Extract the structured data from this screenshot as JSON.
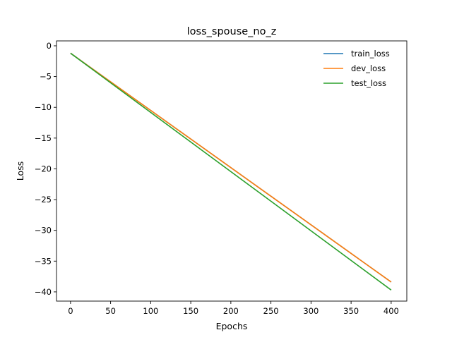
{
  "chart_data": {
    "type": "line",
    "title": "loss_spouse_no_z",
    "xlabel": "Epochs",
    "ylabel": "Loss",
    "xlim": [
      -17.5,
      419.5
    ],
    "ylim": [
      -41.5,
      0.8
    ],
    "xticks": [
      0,
      50,
      100,
      150,
      200,
      250,
      300,
      350,
      400
    ],
    "yticks": [
      0,
      -5,
      -10,
      -15,
      -20,
      -25,
      -30,
      -35,
      -40
    ],
    "legend_position": "upper-right",
    "grid": false,
    "series": [
      {
        "name": "train_loss",
        "color": "#1f77b4",
        "x": [
          0,
          400
        ],
        "y": [
          -1.2,
          -38.4
        ]
      },
      {
        "name": "dev_loss",
        "color": "#ff7f0e",
        "x": [
          0,
          400
        ],
        "y": [
          -1.2,
          -38.4
        ]
      },
      {
        "name": "test_loss",
        "color": "#2ca02c",
        "x": [
          0,
          400
        ],
        "y": [
          -1.2,
          -39.7
        ]
      }
    ]
  }
}
